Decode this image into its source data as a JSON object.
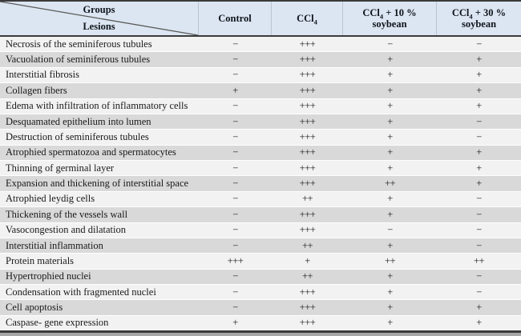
{
  "colors": {
    "header_bg": "#dce6f2",
    "row_light": "#f2f2f2",
    "row_dark": "#d9d9d9",
    "rule_dark": "#3b3b3b",
    "rule_gray": "#a6a6a6"
  },
  "table": {
    "header": {
      "groups_label": "Groups",
      "lesions_label": "Lesions",
      "columns": [
        {
          "name": "control",
          "line1": [
            {
              "t": "Control"
            }
          ],
          "line2": ""
        },
        {
          "name": "ccl4",
          "line1": [
            {
              "t": "CCl"
            },
            {
              "sub": "4"
            }
          ],
          "line2": ""
        },
        {
          "name": "ccl4-plus-10pct-soybean",
          "line1": [
            {
              "t": "CCl"
            },
            {
              "sub": "4"
            },
            {
              "t": " + 10 %"
            }
          ],
          "line2": "soybean"
        },
        {
          "name": "ccl4-plus-30pct-soybean",
          "line1": [
            {
              "t": "CCl"
            },
            {
              "sub": "4"
            },
            {
              "t": " + 30 %"
            }
          ],
          "line2": "soybean"
        }
      ]
    },
    "rows": [
      {
        "lesion": "Necrosis of the seminiferous tubules",
        "values": [
          "−",
          "+++",
          "−",
          "−"
        ]
      },
      {
        "lesion": "Vacuolation of seminiferous tubules",
        "values": [
          "−",
          "+++",
          "+",
          "+"
        ]
      },
      {
        "lesion": "Interstitial fibrosis",
        "values": [
          "−",
          "+++",
          "+",
          "+"
        ]
      },
      {
        "lesion": "Collagen fibers",
        "values": [
          "+",
          "+++",
          "+",
          "+"
        ]
      },
      {
        "lesion": "Edema with infiltration of inflammatory cells",
        "values": [
          "−",
          "+++",
          "+",
          "+"
        ]
      },
      {
        "lesion": "Desquamated epithelium into lumen",
        "values": [
          "−",
          "+++",
          "+",
          "−"
        ]
      },
      {
        "lesion": "Destruction of seminiferous tubules",
        "values": [
          "−",
          "+++",
          "+",
          "−"
        ]
      },
      {
        "lesion": "Atrophied spermatozoa and spermatocytes",
        "values": [
          "−",
          "+++",
          "+",
          "+"
        ]
      },
      {
        "lesion": "Thinning of germinal layer",
        "values": [
          "−",
          "+++",
          "+",
          "+"
        ]
      },
      {
        "lesion": "Expansion and thickening of interstitial space",
        "values": [
          "−",
          "+++",
          "++",
          "+"
        ]
      },
      {
        "lesion": "Atrophied leydig cells",
        "values": [
          "−",
          "++",
          "+",
          "−"
        ]
      },
      {
        "lesion": "Thickening of the vessels wall",
        "values": [
          "−",
          "+++",
          "+",
          "−"
        ]
      },
      {
        "lesion": "Vasocongestion and dilatation",
        "values": [
          "−",
          "+++",
          "−",
          "−"
        ]
      },
      {
        "lesion": "Interstitial inflammation",
        "values": [
          "−",
          "++",
          "+",
          "−"
        ]
      },
      {
        "lesion": "Protein materials",
        "values": [
          "+++",
          "+",
          "++",
          "++"
        ]
      },
      {
        "lesion": "Hypertrophied nuclei",
        "values": [
          "−",
          "++",
          "+",
          "−"
        ]
      },
      {
        "lesion": "Condensation with fragmented nuclei",
        "values": [
          "−",
          "+++",
          "+",
          "−"
        ]
      },
      {
        "lesion": "Cell apoptosis",
        "values": [
          "−",
          "+++",
          "+",
          "+"
        ]
      },
      {
        "lesion": "Caspase- gene expression",
        "values": [
          "+",
          "+++",
          "+",
          "+"
        ]
      }
    ]
  }
}
